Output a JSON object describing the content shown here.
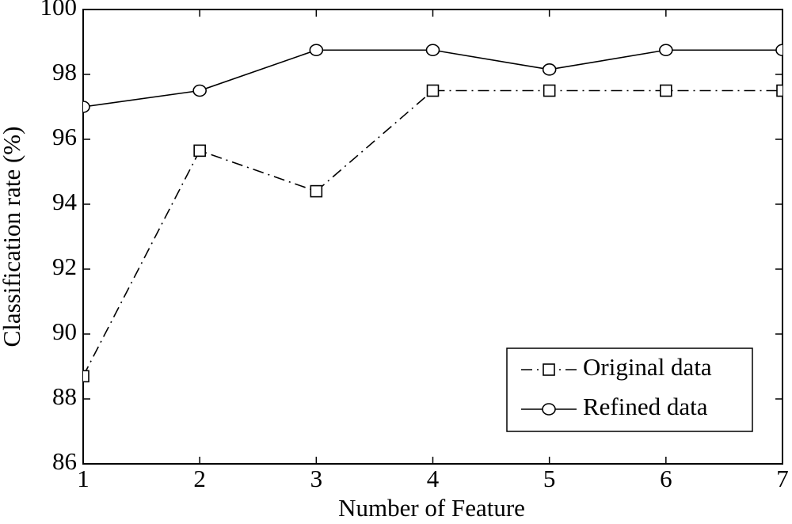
{
  "chart_data": {
    "type": "line",
    "xlabel": "Number of Feature",
    "ylabel": "Classification rate  (%)",
    "x": [
      1,
      2,
      3,
      4,
      5,
      6,
      7
    ],
    "series": [
      {
        "name": "Original data",
        "color": "#000000",
        "marker": "square",
        "dash": "dashdot",
        "values": [
          88.7,
          95.65,
          94.4,
          97.5,
          97.5,
          97.5,
          97.5
        ]
      },
      {
        "name": "Refined data",
        "color": "#000000",
        "marker": "circle",
        "dash": "solid",
        "values": [
          97.0,
          97.5,
          98.75,
          98.75,
          98.15,
          98.75,
          98.75
        ]
      }
    ],
    "xlim": [
      1,
      7
    ],
    "xticks": [
      1,
      2,
      3,
      4,
      5,
      6,
      7
    ],
    "ylim": [
      86,
      100
    ],
    "yticks": [
      86,
      88,
      90,
      92,
      94,
      96,
      98,
      100
    ],
    "grid": false,
    "legend": "lower right"
  }
}
